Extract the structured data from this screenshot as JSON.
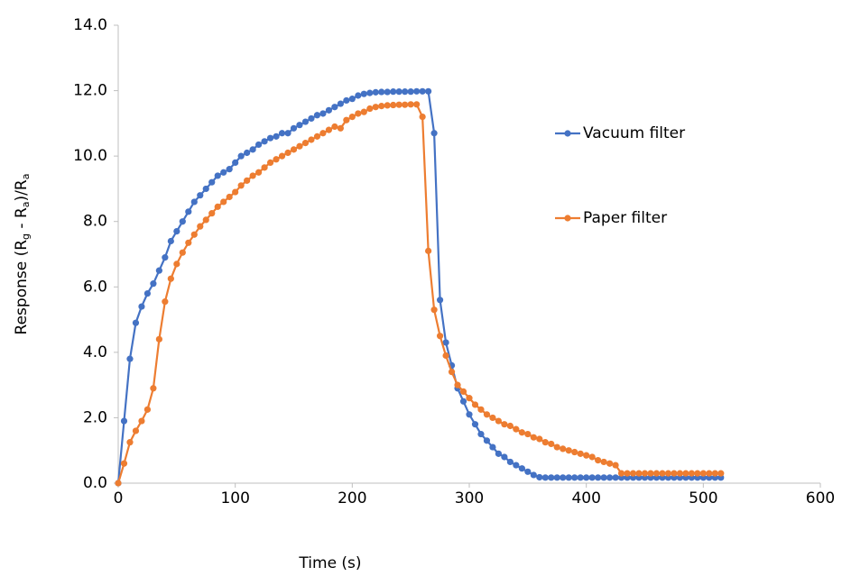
{
  "chart_data": {
    "type": "line",
    "x_label": "Time (s)",
    "y_label": [
      "Response (R",
      "g",
      " - R",
      "a",
      ")/R",
      "a"
    ],
    "x": [
      0,
      5,
      10,
      15,
      20,
      25,
      30,
      35,
      40,
      45,
      50,
      55,
      60,
      65,
      70,
      75,
      80,
      85,
      90,
      95,
      100,
      105,
      110,
      115,
      120,
      125,
      130,
      135,
      140,
      145,
      150,
      155,
      160,
      165,
      170,
      175,
      180,
      185,
      190,
      195,
      200,
      205,
      210,
      215,
      220,
      225,
      230,
      235,
      240,
      245,
      250,
      255,
      260,
      265,
      270,
      275,
      280,
      285,
      290,
      295,
      300,
      305,
      310,
      315,
      320,
      325,
      330,
      335,
      340,
      345,
      350,
      355,
      360,
      365,
      370,
      375,
      380,
      385,
      390,
      395,
      400,
      405,
      410,
      415,
      420,
      425,
      430,
      435,
      440,
      445,
      450,
      455,
      460,
      465,
      470,
      475,
      480,
      485,
      490,
      495,
      500,
      505,
      510,
      515
    ],
    "series": [
      {
        "name": "Vacuum filter",
        "color": "#4472c4",
        "values": [
          0,
          1.9,
          3.8,
          4.9,
          5.4,
          5.8,
          6.1,
          6.5,
          6.9,
          7.4,
          7.7,
          8.0,
          8.3,
          8.6,
          8.8,
          9.0,
          9.2,
          9.4,
          9.5,
          9.6,
          9.8,
          10.0,
          10.1,
          10.2,
          10.35,
          10.45,
          10.55,
          10.6,
          10.7,
          10.7,
          10.85,
          10.95,
          11.05,
          11.15,
          11.25,
          11.3,
          11.4,
          11.5,
          11.6,
          11.7,
          11.75,
          11.85,
          11.9,
          11.93,
          11.95,
          11.96,
          11.96,
          11.97,
          11.97,
          11.97,
          11.97,
          11.98,
          11.98,
          11.98,
          10.7,
          5.6,
          4.3,
          3.6,
          2.9,
          2.5,
          2.1,
          1.8,
          1.5,
          1.3,
          1.1,
          0.9,
          0.8,
          0.65,
          0.55,
          0.45,
          0.35,
          0.25,
          0.18,
          0.17,
          0.17,
          0.17,
          0.17,
          0.17,
          0.17,
          0.17,
          0.17,
          0.17,
          0.17,
          0.17,
          0.17,
          0.17,
          0.17,
          0.17,
          0.17,
          0.17,
          0.17,
          0.17,
          0.17,
          0.17,
          0.17,
          0.17,
          0.17,
          0.17,
          0.17,
          0.17,
          0.17,
          0.17,
          0.17,
          0.17
        ]
      },
      {
        "name": "Paper filter",
        "color": "#ed7d31",
        "values": [
          0,
          0.6,
          1.25,
          1.6,
          1.9,
          2.25,
          2.9,
          4.4,
          5.55,
          6.25,
          6.7,
          7.05,
          7.35,
          7.6,
          7.85,
          8.05,
          8.25,
          8.45,
          8.6,
          8.75,
          8.9,
          9.1,
          9.25,
          9.4,
          9.5,
          9.65,
          9.8,
          9.9,
          10.0,
          10.1,
          10.2,
          10.3,
          10.4,
          10.5,
          10.6,
          10.7,
          10.8,
          10.9,
          10.85,
          11.1,
          11.2,
          11.3,
          11.35,
          11.45,
          11.5,
          11.53,
          11.55,
          11.56,
          11.57,
          11.57,
          11.58,
          11.58,
          11.2,
          7.1,
          5.3,
          4.5,
          3.9,
          3.4,
          3.0,
          2.8,
          2.6,
          2.4,
          2.25,
          2.1,
          2.0,
          1.9,
          1.8,
          1.75,
          1.65,
          1.55,
          1.5,
          1.4,
          1.35,
          1.25,
          1.2,
          1.1,
          1.05,
          1.0,
          0.95,
          0.9,
          0.85,
          0.8,
          0.7,
          0.65,
          0.6,
          0.55,
          0.3,
          0.3,
          0.3,
          0.3,
          0.3,
          0.3,
          0.3,
          0.3,
          0.3,
          0.3,
          0.3,
          0.3,
          0.3,
          0.3,
          0.3,
          0.3,
          0.3,
          0.3
        ]
      }
    ],
    "xlim": [
      0,
      600
    ],
    "xticks": [
      0,
      100,
      200,
      300,
      400,
      500,
      600
    ],
    "ylim": [
      0,
      14
    ],
    "yticks": [
      {
        "value": 0,
        "label": "0.0"
      },
      {
        "value": 2,
        "label": "2.0"
      },
      {
        "value": 4,
        "label": "4.0"
      },
      {
        "value": 6,
        "label": "6.0"
      },
      {
        "value": 8,
        "label": "8.0"
      },
      {
        "value": 10,
        "label": "10.0"
      },
      {
        "value": 12,
        "label": "12.0"
      },
      {
        "value": 14,
        "label": "14.0"
      }
    ],
    "grid": false
  }
}
